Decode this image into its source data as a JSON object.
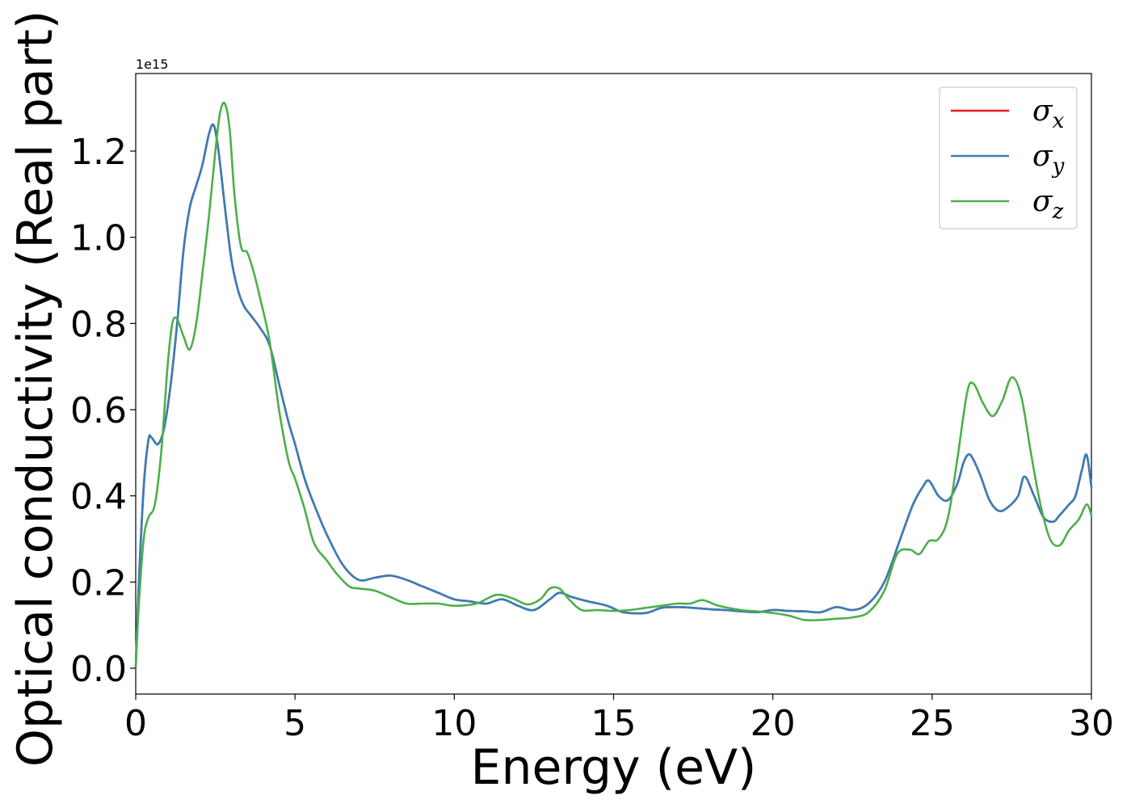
{
  "chart_data": {
    "type": "line",
    "title": "",
    "xlabel": "Energy (eV)",
    "ylabel": "Optical conductivity (Real part)",
    "y_offset_label": "1e15",
    "xlim": [
      0,
      30
    ],
    "ylim": [
      -0.06,
      1.38
    ],
    "xticks": [
      0,
      5,
      10,
      15,
      20,
      25,
      30
    ],
    "xtick_labels": [
      "0",
      "5",
      "10",
      "15",
      "20",
      "25",
      "30"
    ],
    "yticks": [
      0.0,
      0.2,
      0.4,
      0.6,
      0.8,
      1.0,
      1.2
    ],
    "ytick_labels": [
      "0.0",
      "0.2",
      "0.4",
      "0.6",
      "0.8",
      "1.0",
      "1.2"
    ],
    "grid": false,
    "legend_position": "top-right",
    "series": [
      {
        "name": "σx",
        "symbol": "σ",
        "subscript": "x",
        "color": "#e41a1c",
        "x": [
          0,
          0.1,
          0.25,
          0.4,
          0.5,
          0.7,
          0.9,
          1.1,
          1.3,
          1.5,
          1.7,
          1.9,
          2.1,
          2.3,
          2.45,
          2.6,
          2.8,
          3.0,
          3.2,
          3.4,
          3.6,
          3.9,
          4.2,
          4.5,
          4.8,
          5.0,
          5.3,
          5.6,
          6.0,
          6.5,
          7.0,
          7.5,
          8.0,
          8.5,
          9.0,
          9.5,
          10.0,
          10.5,
          11.0,
          11.5,
          12.0,
          12.5,
          13.0,
          13.3,
          13.7,
          14.2,
          14.8,
          15.3,
          16.0,
          16.5,
          17.0,
          17.5,
          18.0,
          18.5,
          19.0,
          19.5,
          20.0,
          20.5,
          21.0,
          21.5,
          22.0,
          22.5,
          23.0,
          23.5,
          24.0,
          24.4,
          24.7,
          24.9,
          25.2,
          25.5,
          25.8,
          26.0,
          26.2,
          26.5,
          26.8,
          27.1,
          27.4,
          27.7,
          27.9,
          28.2,
          28.5,
          28.8,
          29.0,
          29.3,
          29.5,
          29.7,
          29.85,
          30.0
        ],
        "y": [
          0.0,
          0.2,
          0.42,
          0.53,
          0.535,
          0.52,
          0.56,
          0.66,
          0.8,
          0.97,
          1.07,
          1.12,
          1.17,
          1.24,
          1.26,
          1.2,
          1.07,
          0.95,
          0.88,
          0.84,
          0.82,
          0.79,
          0.75,
          0.66,
          0.57,
          0.52,
          0.44,
          0.38,
          0.31,
          0.24,
          0.205,
          0.21,
          0.215,
          0.205,
          0.19,
          0.175,
          0.16,
          0.155,
          0.15,
          0.16,
          0.145,
          0.135,
          0.16,
          0.175,
          0.165,
          0.155,
          0.145,
          0.13,
          0.128,
          0.14,
          0.142,
          0.14,
          0.137,
          0.135,
          0.132,
          0.13,
          0.135,
          0.133,
          0.132,
          0.13,
          0.142,
          0.135,
          0.15,
          0.2,
          0.3,
          0.38,
          0.42,
          0.435,
          0.4,
          0.39,
          0.43,
          0.48,
          0.495,
          0.45,
          0.39,
          0.365,
          0.375,
          0.4,
          0.445,
          0.4,
          0.35,
          0.34,
          0.355,
          0.38,
          0.4,
          0.46,
          0.495,
          0.42
        ]
      },
      {
        "name": "σy",
        "symbol": "σ",
        "subscript": "y",
        "color": "#377eb8",
        "x": [
          0,
          0.1,
          0.25,
          0.4,
          0.5,
          0.7,
          0.9,
          1.1,
          1.3,
          1.5,
          1.7,
          1.9,
          2.1,
          2.3,
          2.45,
          2.6,
          2.8,
          3.0,
          3.2,
          3.4,
          3.6,
          3.9,
          4.2,
          4.5,
          4.8,
          5.0,
          5.3,
          5.6,
          6.0,
          6.5,
          7.0,
          7.5,
          8.0,
          8.5,
          9.0,
          9.5,
          10.0,
          10.5,
          11.0,
          11.5,
          12.0,
          12.5,
          13.0,
          13.3,
          13.7,
          14.2,
          14.8,
          15.3,
          16.0,
          16.5,
          17.0,
          17.5,
          18.0,
          18.5,
          19.0,
          19.5,
          20.0,
          20.5,
          21.0,
          21.5,
          22.0,
          22.5,
          23.0,
          23.5,
          24.0,
          24.4,
          24.7,
          24.9,
          25.2,
          25.5,
          25.8,
          26.0,
          26.2,
          26.5,
          26.8,
          27.1,
          27.4,
          27.7,
          27.9,
          28.2,
          28.5,
          28.8,
          29.0,
          29.3,
          29.5,
          29.7,
          29.85,
          30.0
        ],
        "y": [
          0.0,
          0.2,
          0.42,
          0.53,
          0.535,
          0.52,
          0.56,
          0.66,
          0.8,
          0.97,
          1.07,
          1.12,
          1.17,
          1.24,
          1.26,
          1.2,
          1.07,
          0.95,
          0.88,
          0.84,
          0.82,
          0.79,
          0.75,
          0.66,
          0.57,
          0.52,
          0.44,
          0.38,
          0.31,
          0.24,
          0.205,
          0.21,
          0.215,
          0.205,
          0.19,
          0.175,
          0.16,
          0.155,
          0.15,
          0.16,
          0.145,
          0.135,
          0.16,
          0.175,
          0.165,
          0.155,
          0.145,
          0.13,
          0.128,
          0.14,
          0.142,
          0.14,
          0.137,
          0.135,
          0.132,
          0.13,
          0.135,
          0.133,
          0.132,
          0.13,
          0.142,
          0.135,
          0.15,
          0.2,
          0.3,
          0.38,
          0.42,
          0.435,
          0.4,
          0.39,
          0.43,
          0.48,
          0.495,
          0.45,
          0.39,
          0.365,
          0.375,
          0.4,
          0.445,
          0.4,
          0.35,
          0.34,
          0.355,
          0.38,
          0.4,
          0.46,
          0.495,
          0.42
        ]
      },
      {
        "name": "σz",
        "symbol": "σ",
        "subscript": "z",
        "color": "#4daf4a",
        "x": [
          0,
          0.1,
          0.25,
          0.4,
          0.6,
          0.8,
          1.0,
          1.15,
          1.3,
          1.5,
          1.7,
          1.9,
          2.1,
          2.3,
          2.5,
          2.65,
          2.8,
          2.95,
          3.1,
          3.3,
          3.5,
          3.7,
          3.9,
          4.2,
          4.5,
          4.8,
          5.0,
          5.3,
          5.6,
          6.0,
          6.3,
          6.7,
          7.0,
          7.5,
          8.0,
          8.5,
          9.0,
          9.5,
          10.0,
          10.7,
          11.3,
          11.8,
          12.3,
          12.7,
          13.0,
          13.3,
          13.6,
          14.0,
          14.5,
          15.0,
          15.5,
          16.0,
          16.5,
          17.0,
          17.4,
          17.8,
          18.3,
          19.0,
          19.5,
          20.0,
          20.5,
          21.0,
          21.5,
          22.0,
          22.5,
          23.0,
          23.5,
          23.9,
          24.3,
          24.6,
          24.9,
          25.2,
          25.5,
          25.8,
          26.1,
          26.3,
          26.6,
          26.9,
          27.2,
          27.5,
          27.8,
          28.1,
          28.4,
          28.7,
          29.0,
          29.3,
          29.6,
          29.85,
          30.0
        ],
        "y": [
          0.0,
          0.15,
          0.3,
          0.35,
          0.38,
          0.5,
          0.7,
          0.8,
          0.81,
          0.77,
          0.74,
          0.8,
          0.92,
          1.05,
          1.2,
          1.29,
          1.31,
          1.25,
          1.1,
          0.98,
          0.965,
          0.92,
          0.86,
          0.76,
          0.6,
          0.48,
          0.44,
          0.37,
          0.29,
          0.25,
          0.22,
          0.19,
          0.185,
          0.18,
          0.165,
          0.15,
          0.15,
          0.15,
          0.145,
          0.15,
          0.17,
          0.163,
          0.148,
          0.16,
          0.185,
          0.185,
          0.16,
          0.135,
          0.135,
          0.133,
          0.135,
          0.14,
          0.145,
          0.15,
          0.15,
          0.158,
          0.145,
          0.135,
          0.132,
          0.128,
          0.122,
          0.112,
          0.112,
          0.115,
          0.118,
          0.13,
          0.18,
          0.265,
          0.275,
          0.265,
          0.295,
          0.3,
          0.35,
          0.49,
          0.64,
          0.66,
          0.615,
          0.585,
          0.62,
          0.675,
          0.63,
          0.5,
          0.38,
          0.3,
          0.285,
          0.32,
          0.345,
          0.38,
          0.355
        ]
      }
    ]
  }
}
